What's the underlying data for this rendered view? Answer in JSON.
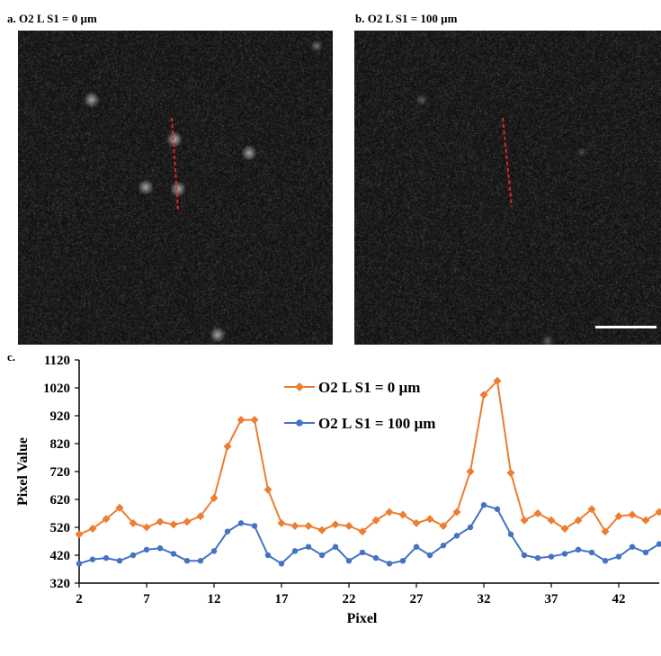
{
  "panels": {
    "a": {
      "label": "a. O2 L S1 = 0 µm"
    },
    "b": {
      "label": "b. O2 L S1 = 100 µm"
    },
    "c": {
      "label": "c."
    }
  },
  "colors": {
    "series0": "#ED7D31",
    "series1": "#4472C4",
    "trace_line": "#E8202A",
    "image_background": "#141414",
    "scale_bar": "#ffffff"
  },
  "chart_data": {
    "type": "line",
    "xlabel": "Pixel",
    "ylabel": "Pixel Value",
    "xlim": [
      2,
      45
    ],
    "ylim": [
      320,
      1120
    ],
    "xticks": [
      2,
      7,
      12,
      17,
      22,
      27,
      32,
      37,
      42
    ],
    "yticks": [
      320,
      420,
      520,
      620,
      720,
      820,
      920,
      1020,
      1120
    ],
    "grid": false,
    "legend_position": "top-center",
    "x": [
      2,
      3,
      4,
      5,
      6,
      7,
      8,
      9,
      10,
      11,
      12,
      13,
      14,
      15,
      16,
      17,
      18,
      19,
      20,
      21,
      22,
      23,
      24,
      25,
      26,
      27,
      28,
      29,
      30,
      31,
      32,
      33,
      34,
      35,
      36,
      37,
      38,
      39,
      40,
      41,
      42,
      43,
      44,
      45
    ],
    "series": [
      {
        "name": "O2 L S1 = 0 µm",
        "marker": "diamond",
        "values": [
          495,
          515,
          550,
          590,
          535,
          520,
          540,
          530,
          540,
          560,
          625,
          810,
          905,
          905,
          655,
          535,
          525,
          525,
          510,
          530,
          525,
          505,
          545,
          575,
          565,
          535,
          550,
          525,
          575,
          720,
          995,
          1045,
          715,
          545,
          570,
          545,
          515,
          545,
          585,
          505,
          560,
          565,
          545,
          575
        ]
      },
      {
        "name": "O2 L S1 = 100 µm",
        "marker": "circle",
        "values": [
          390,
          405,
          410,
          400,
          420,
          440,
          445,
          425,
          400,
          400,
          435,
          505,
          535,
          525,
          420,
          390,
          435,
          450,
          420,
          450,
          400,
          430,
          410,
          390,
          400,
          450,
          420,
          455,
          490,
          520,
          600,
          585,
          495,
          420,
          410,
          415,
          425,
          440,
          430,
          400,
          415,
          450,
          430,
          460
        ]
      }
    ]
  }
}
